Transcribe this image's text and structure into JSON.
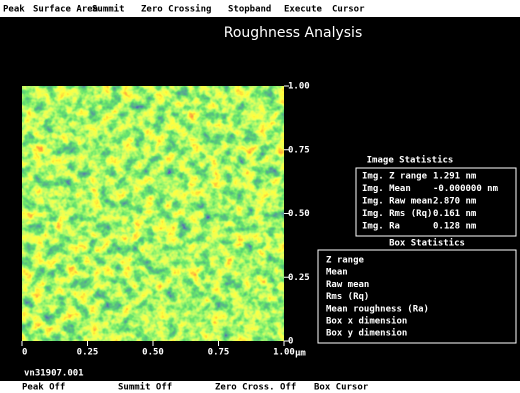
{
  "menu": [
    "Peak",
    "Surface Area",
    "Summit",
    "Zero Crossing",
    "Stopband",
    "Execute",
    "Cursor"
  ],
  "title": "Roughness Analysis",
  "image": {
    "right_ticks": [
      "1.00",
      "0.75",
      "0.50",
      "0.25",
      "0"
    ],
    "bottom_ticks": [
      "0",
      "0.25",
      "0.50",
      "0.75",
      "1.00"
    ],
    "unit": "µm"
  },
  "image_statistics": {
    "title": "Image Statistics",
    "rows": [
      [
        "Img. Z range",
        "1.291 nm"
      ],
      [
        "Img. Mean",
        "-0.000000 nm"
      ],
      [
        "Img. Raw mean",
        "2.870 nm"
      ],
      [
        "Img. Rms (Rq)",
        "0.161 nm"
      ],
      [
        "Img. Ra",
        "0.128 nm"
      ]
    ]
  },
  "box_statistics": {
    "title": "Box Statistics",
    "rows": [
      "Z range",
      "Mean",
      "Raw mean",
      "Rms (Rq)",
      "Mean roughness (Ra)",
      "Box x dimension",
      "Box y dimension"
    ]
  },
  "filename": "vn31907.001",
  "status": [
    "Peak Off",
    "Summit Off",
    "Zero Cross. Off",
    "Box Cursor"
  ]
}
